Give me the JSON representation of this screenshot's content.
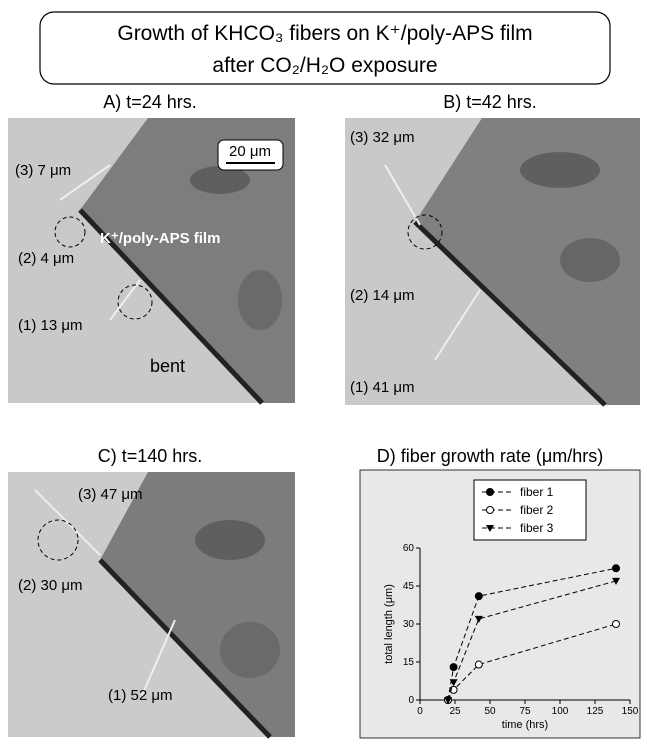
{
  "title": [
    "Growth of KHCO₃ fibers on K⁺/poly-APS film",
    "after CO₂/H₂O exposure"
  ],
  "panels": [
    {
      "label": "A) t=24 hrs.",
      "annotations": [
        "(3) 7 μm",
        "(2) 4 μm",
        "(1) 13 μm",
        "bent",
        "K⁺/poly-APS film",
        "20 μm"
      ]
    },
    {
      "label": "B) t=42 hrs.",
      "annotations": [
        "(3) 32 μm",
        "(2) 14 μm",
        "(1) 41 μm"
      ]
    },
    {
      "label": "C) t=140 hrs.",
      "annotations": [
        "(3) 47 μm",
        "(2) 30 μm",
        "(1) 52 μm"
      ]
    }
  ],
  "chart_data": {
    "type": "line",
    "title": "D) fiber growth rate (μm/hrs)",
    "x_label": "time (hrs)",
    "y_label": "total length (μm)",
    "x": [
      20,
      24,
      42,
      140
    ],
    "series": [
      {
        "name": "fiber 1",
        "color": "#000000",
        "marker": "filled-circle",
        "values": [
          0,
          13,
          41,
          52
        ]
      },
      {
        "name": "fiber 2",
        "color": "#000000",
        "marker": "open-circle",
        "values": [
          0,
          4,
          14,
          30
        ]
      },
      {
        "name": "fiber 3",
        "color": "#000000",
        "marker": "triangle-down",
        "values": [
          0,
          7,
          32,
          47
        ]
      }
    ],
    "xlim": [
      0,
      150
    ],
    "xticks": [
      0,
      25,
      50,
      75,
      100,
      125,
      150
    ],
    "ylim": [
      0,
      60
    ],
    "yticks": [
      0,
      15,
      30,
      45,
      60
    ]
  }
}
